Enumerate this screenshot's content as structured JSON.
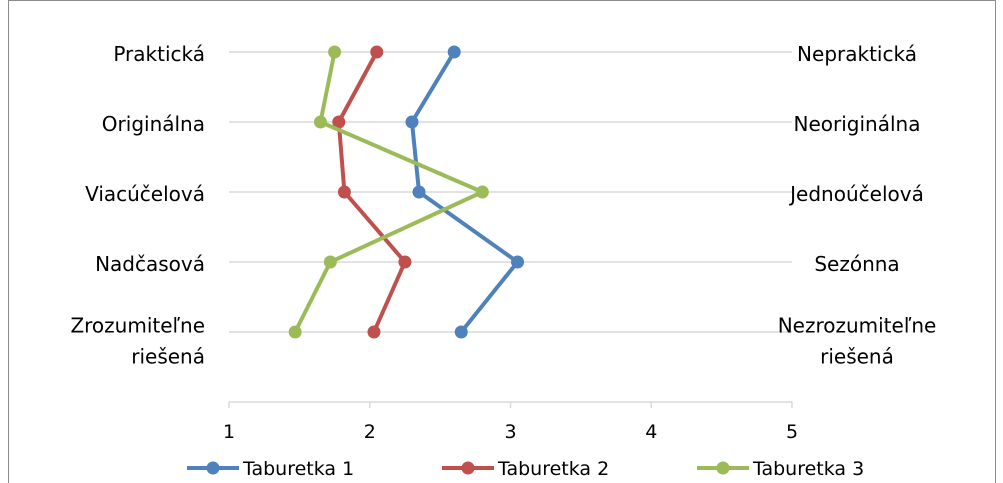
{
  "chart_data": {
    "type": "line",
    "orientation": "horizontal-profile",
    "xlim": [
      1,
      5
    ],
    "x_ticks": [
      "1",
      "2",
      "3",
      "4",
      "5"
    ],
    "grid": true,
    "legend_position": "bottom",
    "categories_left": [
      [
        "Praktická"
      ],
      [
        "Originálna"
      ],
      [
        "Viacúčelová"
      ],
      [
        "Nadčasová"
      ],
      [
        "Zrozumiteľne",
        "riešená"
      ]
    ],
    "categories_right": [
      [
        "Nepraktická"
      ],
      [
        "Neoriginálna"
      ],
      [
        "Jednoúčelová"
      ],
      [
        "Sezónna"
      ],
      [
        "Nezrozumiteľne",
        "riešená"
      ]
    ],
    "series": [
      {
        "name": "Taburetka 1",
        "color": "#4f81bd",
        "values": [
          2.6,
          2.3,
          2.35,
          3.05,
          2.65
        ]
      },
      {
        "name": "Taburetka 2",
        "color": "#c0504d",
        "values": [
          2.05,
          1.78,
          1.82,
          2.25,
          2.03
        ]
      },
      {
        "name": "Taburetka 3",
        "color": "#9bbb59",
        "values": [
          1.75,
          1.65,
          2.8,
          1.72,
          1.47
        ]
      }
    ]
  }
}
